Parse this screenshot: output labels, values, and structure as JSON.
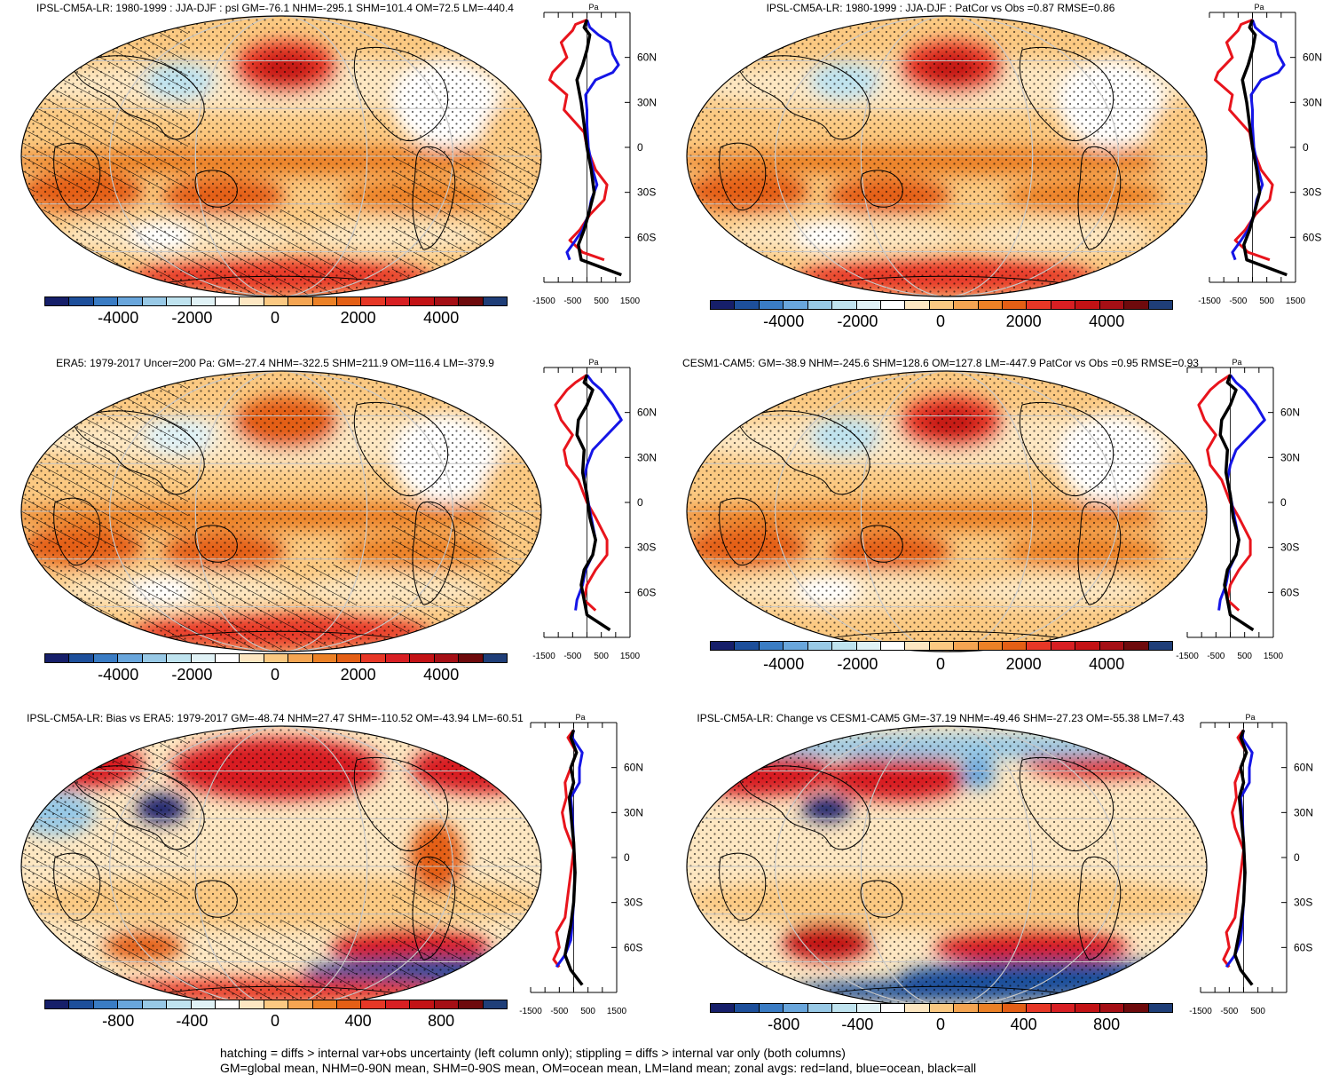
{
  "colors": {
    "psl": [
      "#161f6a",
      "#1d4f9b",
      "#3a7cc4",
      "#69a6dc",
      "#98c9e6",
      "#bfe3ef",
      "#e0f2f6",
      "#ffffff",
      "#fde7c2",
      "#fbc982",
      "#f5a552",
      "#ec8126",
      "#e45f15",
      "#e73726",
      "#d81f23",
      "#c31215",
      "#a50f15",
      "#6e0a0c",
      "#1f3e78"
    ],
    "bias": [
      "#161f6a",
      "#1d4f9b",
      "#3a7cc4",
      "#69a6dc",
      "#98c9e6",
      "#bfe3ef",
      "#e0f2f6",
      "#ffffff",
      "#fde7c2",
      "#fbc982",
      "#f5a552",
      "#ec8126",
      "#e45f15",
      "#e73726",
      "#d81f23",
      "#c31215",
      "#a50f15",
      "#6e0a0c",
      "#1f3e78"
    ],
    "land": "#e8141c",
    "ocean": "#1515e6",
    "all": "#000000"
  },
  "panels": [
    {
      "title": "IPSL-CM5A-LR: 1980-1999 : JJA-DJF : psl GM=-76.1 NHM=-295.1 SHM=101.4 OM=72.5 LM=-440.4",
      "unit": "Pa",
      "lat_labels": [
        "60N",
        "30N",
        "0",
        "30S",
        "60S"
      ],
      "x_ticks": [
        "-1500",
        "-500",
        "500",
        "1500"
      ],
      "cbar_labels": [
        "-4000",
        "-2000",
        "0",
        "2000",
        "4000"
      ]
    },
    {
      "title": "IPSL-CM5A-LR: 1980-1999 : JJA-DJF : PatCor vs Obs =0.87 RMSE=0.86",
      "unit": "Pa",
      "lat_labels": [
        "60N",
        "30N",
        "0",
        "30S",
        "60S"
      ],
      "x_ticks": [
        "-1500",
        "-500",
        "500",
        "1500"
      ],
      "cbar_labels": [
        "-4000",
        "-2000",
        "0",
        "2000",
        "4000"
      ]
    },
    {
      "title": "ERA5: 1979-2017 Uncer=200 Pa: GM=-27.4 NHM=-322.5 SHM=211.9 OM=116.4 LM=-379.9",
      "unit": "Pa",
      "lat_labels": [
        "60N",
        "30N",
        "0",
        "30S",
        "60S"
      ],
      "x_ticks": [
        "-1500",
        "-500",
        "500",
        "1500"
      ],
      "cbar_labels": [
        "-4000",
        "-2000",
        "0",
        "2000",
        "4000"
      ]
    },
    {
      "title": "CESM1-CAM5: GM=-38.9 NHM=-245.6 SHM=128.6 OM=127.8 LM=-447.9 PatCor vs Obs =0.95 RMSE=0.93",
      "unit": "Pa",
      "lat_labels": [
        "60N",
        "30N",
        "0",
        "30S",
        "60S"
      ],
      "x_ticks": [
        "-1500",
        "-500",
        "500",
        "1500"
      ],
      "cbar_labels": [
        "-4000",
        "-2000",
        "0",
        "2000",
        "4000"
      ]
    },
    {
      "title": "IPSL-CM5A-LR: Bias vs ERA5: 1979-2017 GM=-48.74 NHM=27.47 SHM=-110.52 OM=-43.94 LM=-60.51",
      "unit": "Pa",
      "lat_labels": [
        "60N",
        "30N",
        "0",
        "30S",
        "60S"
      ],
      "x_ticks": [
        "-1500",
        "-500",
        "500",
        "1500"
      ],
      "cbar_labels": [
        "-800",
        "-400",
        "0",
        "400",
        "800"
      ]
    },
    {
      "title": "IPSL-CM5A-LR: Change vs CESM1-CAM5 GM=-37.19 NHM=-49.46 SHM=-27.23 OM=-55.38 LM=7.43",
      "unit": "Pa",
      "lat_labels": [
        "60N",
        "30N",
        "0",
        "30S",
        "60S"
      ],
      "x_ticks": [
        "-1500",
        "-500",
        "500"
      ],
      "cbar_labels": [
        "-800",
        "-400",
        "0",
        "400",
        "800"
      ]
    }
  ],
  "footer": {
    "line1": "hatching = diffs > internal var+obs uncertainty (left column only); stippling = diffs > internal var only (both columns)",
    "line2": "GM=global mean, NHM=0-90N mean, SHM=0-90S mean, OM=ocean mean, LM=land mean; zonal avgs: red=land, blue=ocean, black=all"
  }
}
